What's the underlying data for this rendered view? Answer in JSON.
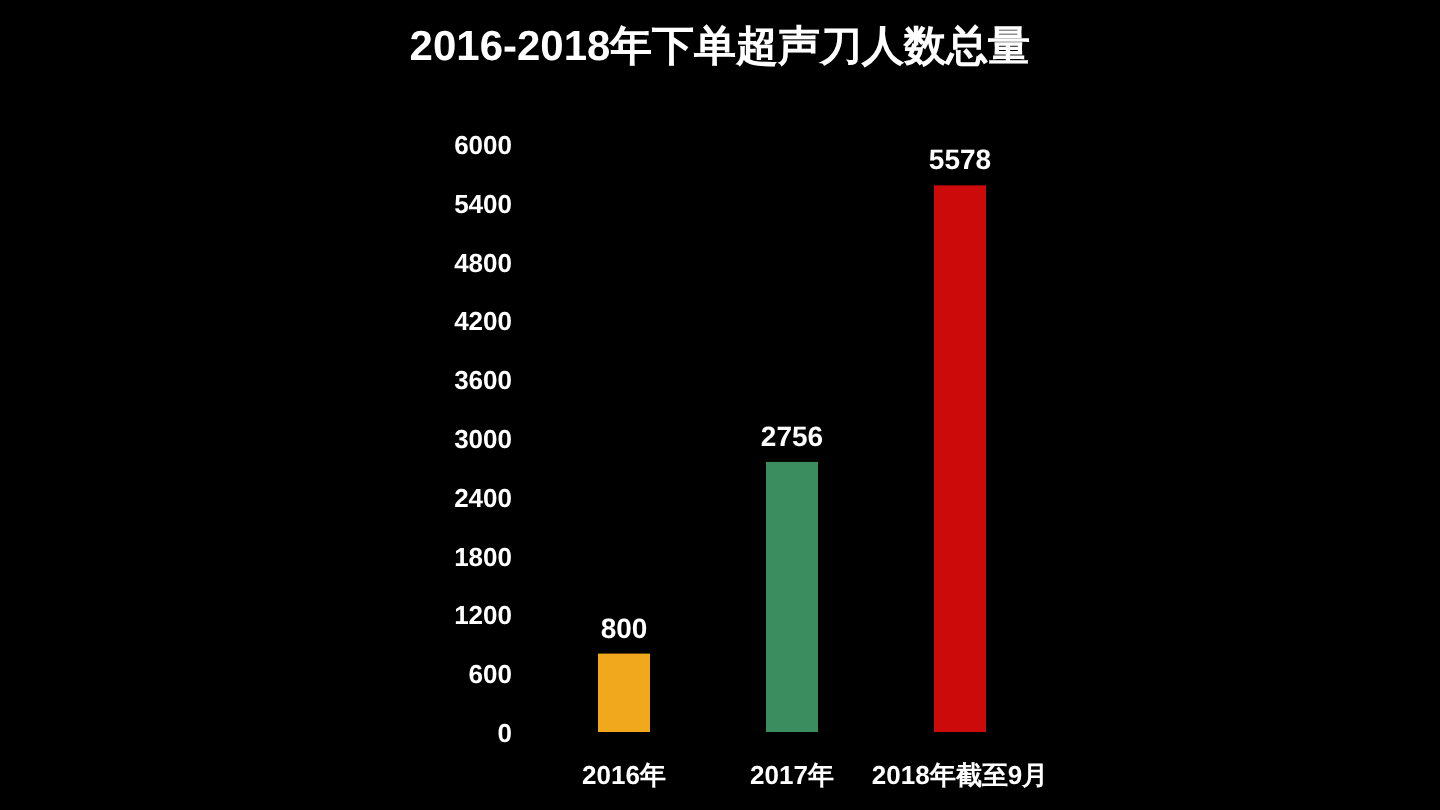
{
  "chart_data": {
    "type": "bar",
    "title": "2016-2018年下单超声刀人数总量",
    "categories": [
      "2016年",
      "2017年",
      "2018年截至9月"
    ],
    "values": [
      800,
      2756,
      5578
    ],
    "colors": [
      "#f2a81d",
      "#3b8c5e",
      "#cc0a0a"
    ],
    "ylim": [
      0,
      6000
    ],
    "yticks": [
      0,
      600,
      1200,
      1800,
      2400,
      3000,
      3600,
      4200,
      4800,
      5400,
      6000
    ],
    "data_labels": true,
    "grid": false
  }
}
